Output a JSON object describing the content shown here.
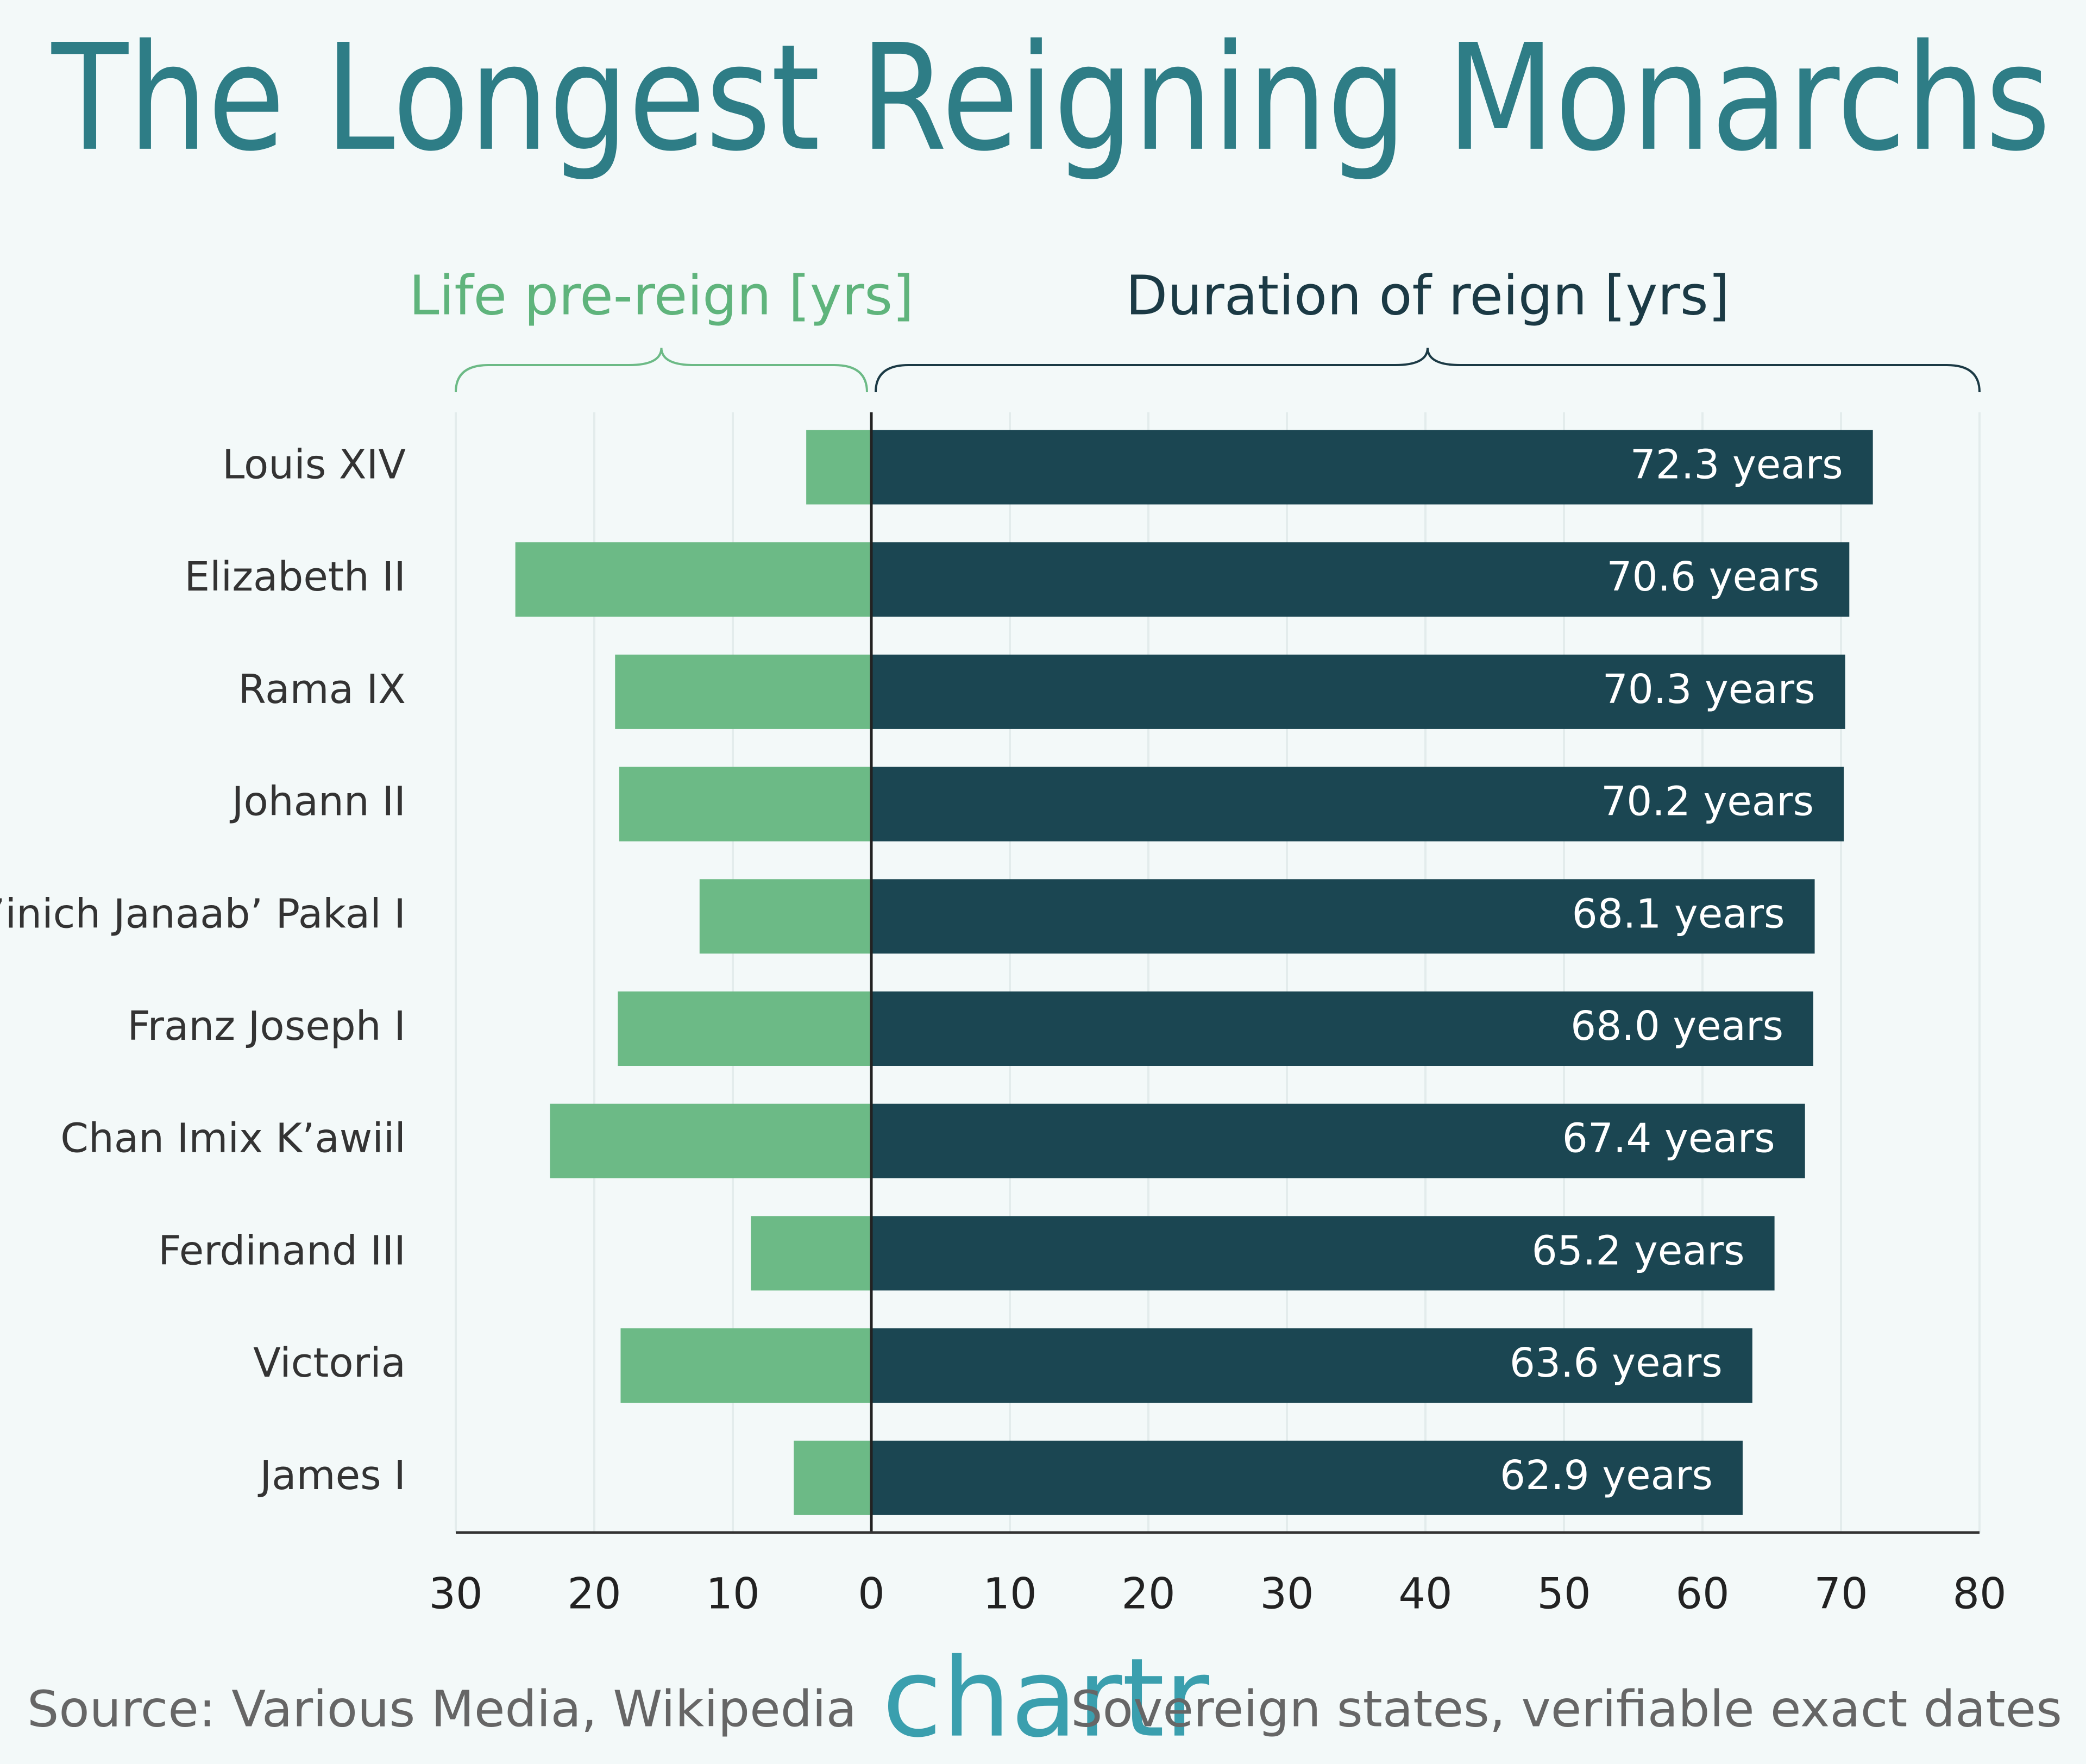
{
  "chart_data": {
    "type": "diverging_bar",
    "title": "The Longest Reigning Monarchs",
    "categories": [
      "Louis XIV",
      "Elizabeth II",
      "Rama IX",
      "Johann II",
      "K’inich Janaab’ Pakal I",
      "Franz Joseph I",
      "Chan Imix K’awiil",
      "Ferdinand III",
      "Victoria",
      "James I"
    ],
    "series": [
      {
        "name": "Life pre-reign [yrs]",
        "color": "#6cba86",
        "side": "left",
        "values": [
          4.7,
          25.7,
          18.5,
          18.2,
          12.4,
          18.3,
          23.2,
          8.7,
          18.1,
          5.6
        ]
      },
      {
        "name": "Duration of reign [yrs]",
        "color": "#1b4652",
        "side": "right",
        "values": [
          72.3,
          70.6,
          70.3,
          70.2,
          68.1,
          68.0,
          67.4,
          65.2,
          63.6,
          62.9
        ],
        "value_labels": [
          "72.3 years",
          "70.6 years",
          "70.3 years",
          "70.2 years",
          "68.1 years",
          "68.0 years",
          "67.4 years",
          "65.2 years",
          "63.6 years",
          "62.9 years"
        ]
      }
    ],
    "xlim_left": [
      30,
      0
    ],
    "xticks_left": [
      30,
      20,
      10
    ],
    "xlim": [
      0,
      80
    ],
    "xticks": [
      0,
      10,
      20,
      30,
      40,
      50,
      60,
      70,
      80
    ],
    "grid": true,
    "source": "Source: Various Media, Wikipedia",
    "logo": "chartr",
    "note": "Sovereign states, verifiable exact dates"
  }
}
